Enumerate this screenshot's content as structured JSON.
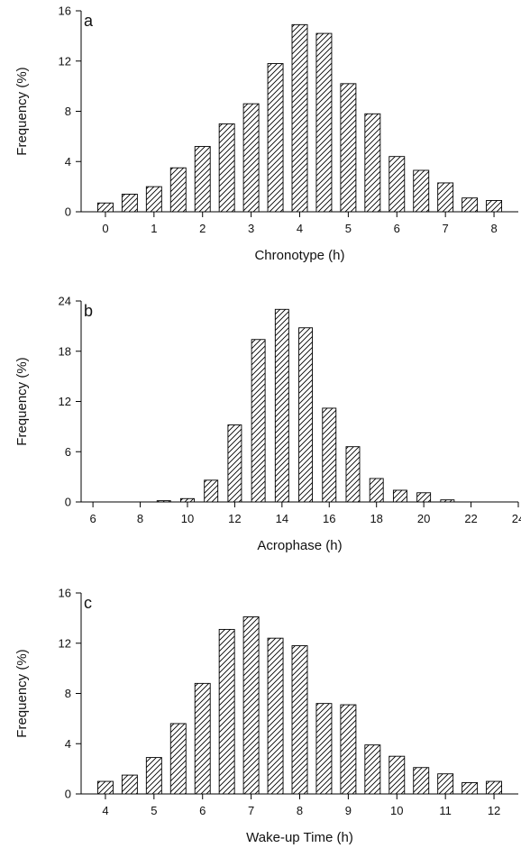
{
  "colors": {
    "bar_fill": "#ffffff",
    "bar_stroke": "#000000",
    "hatch": "#000000",
    "axis": "#000000"
  },
  "chart_data": [
    {
      "type": "bar",
      "panel_label": "a",
      "title": "",
      "xlabel": "Chronotype (h)",
      "ylabel": "Frequency (%)",
      "xlim": [
        -0.5,
        8.5
      ],
      "ylim": [
        0,
        16
      ],
      "x_ticks": [
        0,
        1,
        2,
        3,
        4,
        5,
        6,
        7,
        8
      ],
      "y_ticks": [
        0,
        4,
        8,
        12,
        16
      ],
      "grid": false,
      "fill_pattern": "diagonal-hatch",
      "x": [
        0,
        0.5,
        1,
        1.5,
        2,
        2.5,
        3,
        3.5,
        4,
        4.5,
        5,
        5.5,
        6,
        6.5,
        7,
        7.5,
        8
      ],
      "values": [
        0.7,
        1.4,
        2.0,
        3.5,
        5.2,
        7.0,
        8.6,
        11.8,
        14.9,
        14.2,
        10.2,
        7.8,
        4.4,
        3.3,
        2.3,
        1.1,
        0.9
      ]
    },
    {
      "type": "bar",
      "panel_label": "b",
      "title": "",
      "xlabel": "Acrophase (h)",
      "ylabel": "Frequency (%)",
      "xlim": [
        5.5,
        24
      ],
      "ylim": [
        0,
        24
      ],
      "x_ticks": [
        6,
        8,
        10,
        12,
        14,
        16,
        18,
        20,
        22,
        24
      ],
      "y_ticks": [
        0,
        6,
        12,
        18,
        24
      ],
      "grid": false,
      "fill_pattern": "diagonal-hatch",
      "x": [
        9,
        10,
        11,
        12,
        13,
        14,
        15,
        16,
        17,
        18,
        19,
        20,
        21
      ],
      "values": [
        0.15,
        0.4,
        2.6,
        9.2,
        19.4,
        23.0,
        20.8,
        11.2,
        6.6,
        2.8,
        1.4,
        1.1,
        0.25
      ]
    },
    {
      "type": "bar",
      "panel_label": "c",
      "title": "",
      "xlabel": "Wake-up Time (h)",
      "ylabel": "Frequency (%)",
      "xlim": [
        3.5,
        12.5
      ],
      "ylim": [
        0,
        16
      ],
      "x_ticks": [
        4,
        5,
        6,
        7,
        8,
        9,
        10,
        11,
        12
      ],
      "y_ticks": [
        0,
        4,
        8,
        12,
        16
      ],
      "grid": false,
      "fill_pattern": "diagonal-hatch",
      "x": [
        4,
        4.5,
        5,
        5.5,
        6,
        6.5,
        7,
        7.5,
        8,
        8.5,
        9,
        9.5,
        10,
        10.5,
        11,
        11.5,
        12
      ],
      "values": [
        1.0,
        1.5,
        2.9,
        5.6,
        8.8,
        13.1,
        14.1,
        12.4,
        11.8,
        7.2,
        7.1,
        3.9,
        3.0,
        2.1,
        1.6,
        0.9,
        1.0
      ]
    }
  ]
}
